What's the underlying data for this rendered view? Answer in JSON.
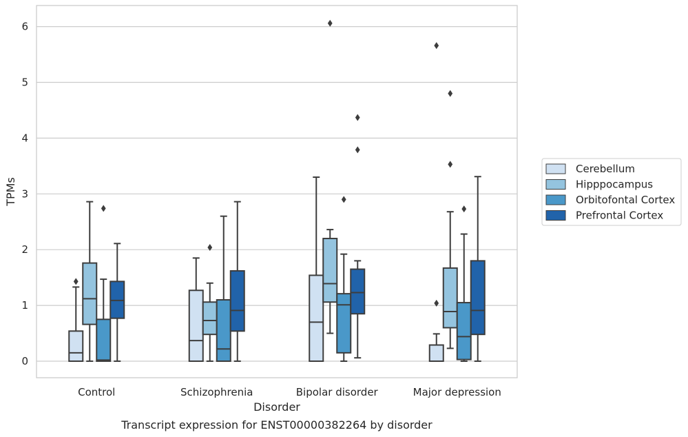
{
  "chart_data": {
    "type": "box",
    "title": "Transcript expression for ENST00000382264 by disorder",
    "xlabel": "Disorder",
    "ylabel": "TPMs",
    "ylim": [
      -0.3,
      6.37
    ],
    "yticks": [
      0,
      1,
      2,
      3,
      4,
      5,
      6
    ],
    "grid": "horizontal",
    "legend_position": "right",
    "categories": [
      "Control",
      "Schizophrenia",
      "Bipolar disorder",
      "Major depression"
    ],
    "series": [
      {
        "name": "Cerebellum",
        "color": "#d0e1f2",
        "boxes": [
          {
            "whisker_low": 0,
            "q1": 0,
            "median": 0.15,
            "q3": 0.54,
            "whisker_high": 1.33,
            "outliers": [
              1.43
            ]
          },
          {
            "whisker_low": 0,
            "q1": 0,
            "median": 0.37,
            "q3": 1.27,
            "whisker_high": 1.85,
            "outliers": []
          },
          {
            "whisker_low": 0,
            "q1": 0,
            "median": 0.7,
            "q3": 1.54,
            "whisker_high": 3.3,
            "outliers": []
          },
          {
            "whisker_low": 0,
            "q1": 0,
            "median": 0,
            "q3": 0.29,
            "whisker_high": 0.49,
            "outliers": [
              1.04,
              5.66
            ]
          }
        ]
      },
      {
        "name": "Hipppocampus",
        "color": "#94c4df",
        "boxes": [
          {
            "whisker_low": 0,
            "q1": 0.66,
            "median": 1.12,
            "q3": 1.76,
            "whisker_high": 2.86,
            "outliers": []
          },
          {
            "whisker_low": 0,
            "q1": 0.48,
            "median": 0.73,
            "q3": 1.06,
            "whisker_high": 1.4,
            "outliers": [
              2.04
            ]
          },
          {
            "whisker_low": 0.5,
            "q1": 1.06,
            "median": 1.39,
            "q3": 2.2,
            "whisker_high": 2.36,
            "outliers": [
              6.06
            ]
          },
          {
            "whisker_low": 0.23,
            "q1": 0.6,
            "median": 0.89,
            "q3": 1.67,
            "whisker_high": 2.68,
            "outliers": [
              3.53,
              4.8
            ]
          }
        ]
      },
      {
        "name": "Orbitofontal Cortex",
        "color": "#4a98c9",
        "boxes": [
          {
            "whisker_low": 0,
            "q1": 0,
            "median": 0.02,
            "q3": 0.75,
            "whisker_high": 1.47,
            "outliers": [
              2.74
            ]
          },
          {
            "whisker_low": 0,
            "q1": 0,
            "median": 0.22,
            "q3": 1.1,
            "whisker_high": 2.6,
            "outliers": []
          },
          {
            "whisker_low": 0,
            "q1": 0.15,
            "median": 1.01,
            "q3": 1.21,
            "whisker_high": 1.92,
            "outliers": [
              2.9
            ]
          },
          {
            "whisker_low": 0,
            "q1": 0.03,
            "median": 0.44,
            "q3": 1.05,
            "whisker_high": 2.28,
            "outliers": [
              2.73
            ]
          }
        ]
      },
      {
        "name": "Prefrontal Cortex",
        "color": "#2163aa",
        "boxes": [
          {
            "whisker_low": 0,
            "q1": 0.77,
            "median": 1.09,
            "q3": 1.43,
            "whisker_high": 2.11,
            "outliers": []
          },
          {
            "whisker_low": 0,
            "q1": 0.54,
            "median": 0.91,
            "q3": 1.62,
            "whisker_high": 2.86,
            "outliers": []
          },
          {
            "whisker_low": 0.06,
            "q1": 0.85,
            "median": 1.23,
            "q3": 1.65,
            "whisker_high": 1.8,
            "outliers": [
              3.79,
              4.37
            ]
          },
          {
            "whisker_low": 0,
            "q1": 0.48,
            "median": 0.91,
            "q3": 1.8,
            "whisker_high": 3.31,
            "outliers": []
          }
        ]
      }
    ]
  }
}
